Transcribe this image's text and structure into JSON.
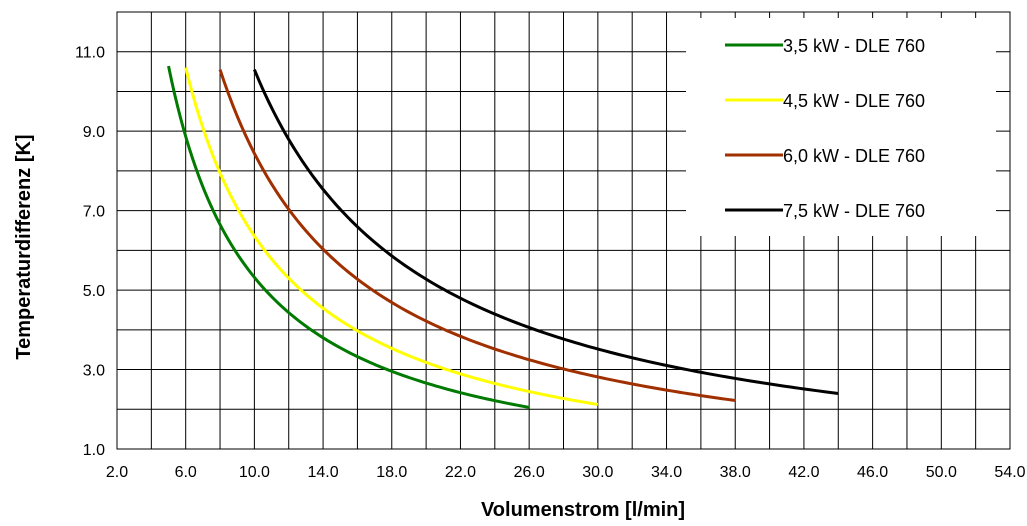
{
  "chart_data": {
    "type": "line",
    "title": "",
    "xlabel": "Volumenstrom [l/min]",
    "ylabel": "Temperaturdifferenz [K]",
    "xlim": [
      2.0,
      54.0
    ],
    "ylim": [
      1.0,
      12.0
    ],
    "x_ticks": [
      "2.0",
      "6.0",
      "10.0",
      "14.0",
      "18.0",
      "22.0",
      "26.0",
      "30.0",
      "34.0",
      "38.0",
      "42.0",
      "46.0",
      "50.0",
      "54.0"
    ],
    "y_ticks": [
      "1.0",
      "3.0",
      "5.0",
      "7.0",
      "9.0",
      "11.0"
    ],
    "grid": true,
    "legend_position": "top-right",
    "series": [
      {
        "name": "3,5 kW - DLE 760",
        "color": "#007A00",
        "k": 53.2,
        "x": [
          5.0,
          6.0,
          8.0,
          10.0,
          12.0,
          14.0,
          16.0,
          18.0,
          20.0,
          22.0,
          24.0,
          26.0
        ],
        "y": [
          10.64,
          8.87,
          6.65,
          5.32,
          4.43,
          3.8,
          3.33,
          2.96,
          2.66,
          2.42,
          2.22,
          2.05
        ]
      },
      {
        "name": "4,5 kW - DLE 760",
        "color": "#FFFF00",
        "k": 63.6,
        "x": [
          6.0,
          8.0,
          10.0,
          12.0,
          14.0,
          16.0,
          18.0,
          20.0,
          22.0,
          24.0,
          26.0,
          28.0,
          30.0
        ],
        "y": [
          10.6,
          7.95,
          6.36,
          5.3,
          4.54,
          3.98,
          3.53,
          3.18,
          2.89,
          2.65,
          2.45,
          2.27,
          2.12
        ]
      },
      {
        "name": "6,0 kW - DLE 760",
        "color": "#A03000",
        "k": 84.4,
        "x": [
          8.0,
          10.0,
          12.0,
          14.0,
          16.0,
          18.0,
          20.0,
          22.0,
          24.0,
          26.0,
          28.0,
          30.0,
          32.0,
          34.0,
          36.0,
          38.0
        ],
        "y": [
          10.55,
          8.44,
          7.03,
          6.03,
          5.28,
          4.69,
          4.22,
          3.84,
          3.52,
          3.25,
          3.01,
          2.81,
          2.64,
          2.48,
          2.34,
          2.22
        ]
      },
      {
        "name": "7,5 kW - DLE 760",
        "color": "#000000",
        "k": 105.5,
        "x": [
          10.0,
          12.0,
          14.0,
          16.0,
          18.0,
          20.0,
          22.0,
          24.0,
          26.0,
          28.0,
          30.0,
          32.0,
          34.0,
          36.0,
          38.0,
          40.0,
          42.0,
          44.0
        ],
        "y": [
          10.55,
          8.79,
          7.54,
          6.59,
          5.86,
          5.28,
          4.8,
          4.4,
          4.06,
          3.77,
          3.52,
          3.3,
          3.1,
          2.93,
          2.78,
          2.64,
          2.51,
          2.4
        ]
      }
    ]
  }
}
